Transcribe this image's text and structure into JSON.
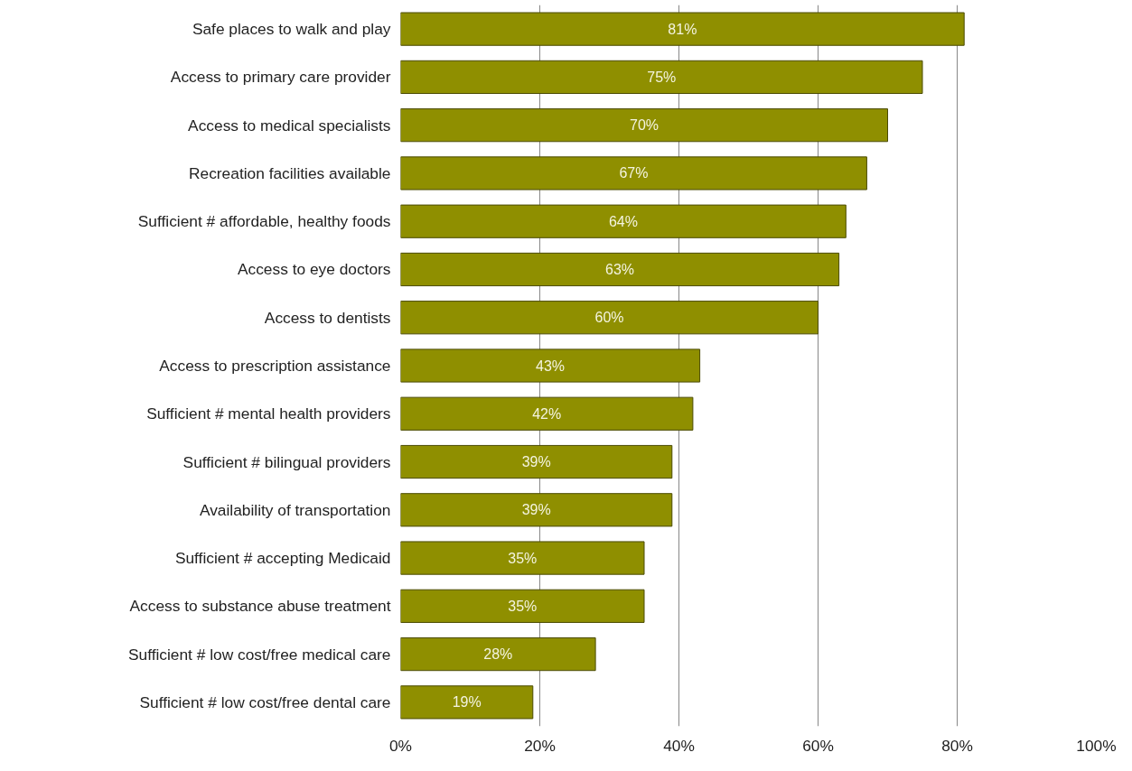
{
  "chart_data": {
    "type": "bar",
    "orientation": "horizontal",
    "categories": [
      "Safe places to walk and play",
      "Access to primary care provider",
      "Access to medical specialists",
      "Recreation facilities available",
      "Sufficient # affordable, healthy foods",
      "Access to eye doctors",
      "Access to dentists",
      "Access to prescription assistance",
      "Sufficient # mental health providers",
      "Sufficient # bilingual providers",
      "Availability of transportation",
      "Sufficient # accepting Medicaid",
      "Access to substance abuse treatment",
      "Sufficient # low cost/free medical care",
      "Sufficient # low cost/free dental care"
    ],
    "values": [
      81,
      75,
      70,
      67,
      64,
      63,
      60,
      43,
      42,
      39,
      39,
      35,
      35,
      28,
      19
    ],
    "value_labels": [
      "81%",
      "75%",
      "70%",
      "67%",
      "64%",
      "63%",
      "60%",
      "43%",
      "42%",
      "39%",
      "39%",
      "35%",
      "35%",
      "28%",
      "19%"
    ],
    "color": "#8f8f00",
    "xlim": [
      0,
      100
    ],
    "xticks": [
      {
        "value": 0,
        "label": "0%"
      },
      {
        "value": 20,
        "label": "20%"
      },
      {
        "value": 40,
        "label": "40%"
      },
      {
        "value": 60,
        "label": "60%"
      },
      {
        "value": 80,
        "label": "80%"
      },
      {
        "value": 100,
        "label": "100%"
      }
    ],
    "grid": "x"
  }
}
